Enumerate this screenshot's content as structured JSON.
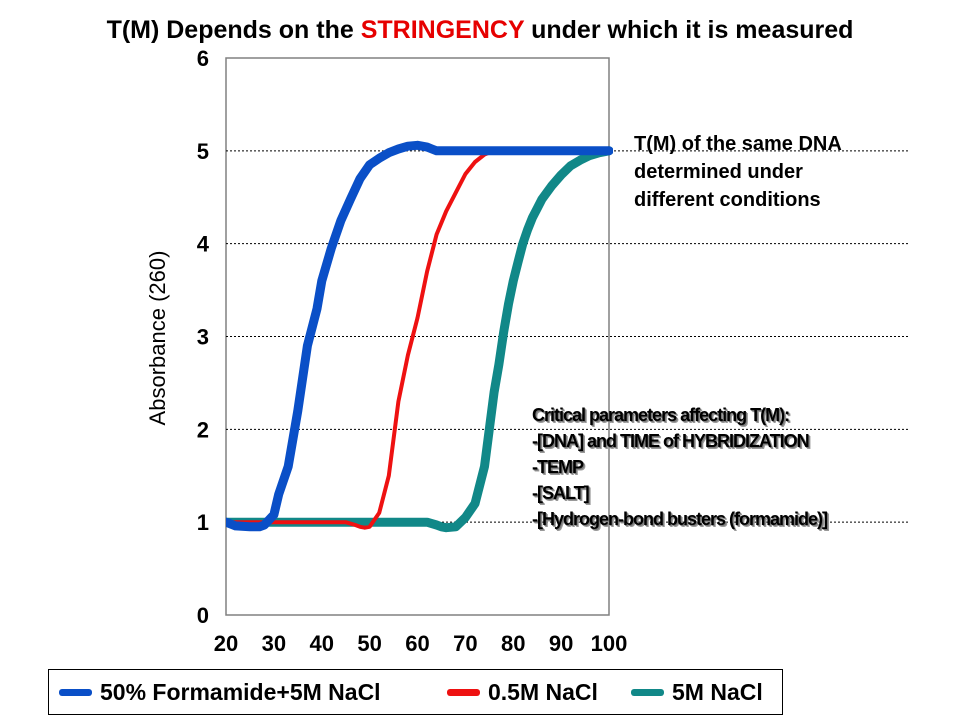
{
  "title": {
    "prefix": "T(M) Depends on the ",
    "highlight": "STRINGENCY",
    "suffix": " under which it is measured",
    "highlight_color": "#e60000"
  },
  "side_note": {
    "line1": "T(M) of the same DNA",
    "line2": "determined under",
    "line3": "different conditions"
  },
  "parameters_box": {
    "line1": "Critical parameters affecting T(M):",
    "line2": "-[DNA] and TIME of HYBRIDIZATION",
    "line3": "-TEMP",
    "line4": "-[SALT]",
    "line5": "-[Hydrogen-bond busters (formamide)]"
  },
  "chart_data": {
    "type": "line",
    "title": "",
    "xlabel": "",
    "ylabel": "Absorbance (260)",
    "xlim": [
      20,
      100
    ],
    "ylim": [
      0,
      6
    ],
    "x_ticks": [
      20,
      30,
      40,
      50,
      60,
      70,
      80,
      90,
      100
    ],
    "y_ticks": [
      0,
      1,
      2,
      3,
      4,
      5,
      6
    ],
    "grid": "horizontal dotted",
    "legend_position": "bottom",
    "series": [
      {
        "name": "50% Formamide+5M NaCl",
        "color": "#0a4fc7",
        "x": [
          20,
          22,
          25,
          27,
          28,
          30,
          31,
          33,
          35,
          37,
          39,
          40,
          42,
          44,
          46,
          48,
          50,
          52,
          54,
          56,
          58,
          60,
          62,
          63,
          64,
          65,
          66,
          67,
          70,
          75,
          80,
          85,
          90,
          95,
          100
        ],
        "y": [
          1.0,
          0.96,
          0.95,
          0.95,
          0.97,
          1.08,
          1.3,
          1.6,
          2.2,
          2.9,
          3.3,
          3.6,
          3.95,
          4.25,
          4.48,
          4.7,
          4.85,
          4.92,
          4.98,
          5.02,
          5.05,
          5.06,
          5.04,
          5.02,
          5.0,
          5.0,
          5.0,
          5.0,
          5.0,
          5.0,
          5.0,
          5.0,
          5.0,
          5.0,
          5.0
        ]
      },
      {
        "name": "0.5M NaCl",
        "color": "#ee1111",
        "x": [
          20,
          30,
          40,
          45,
          47,
          48,
          49,
          50,
          52,
          54,
          56,
          58,
          60,
          62,
          64,
          66,
          68,
          70,
          72,
          74,
          76,
          78,
          80,
          82,
          84,
          86,
          90,
          95,
          100
        ],
        "y": [
          1.0,
          1.0,
          1.0,
          1.0,
          0.97,
          0.95,
          0.94,
          0.95,
          1.1,
          1.5,
          2.3,
          2.8,
          3.2,
          3.7,
          4.1,
          4.35,
          4.55,
          4.75,
          4.88,
          4.96,
          5.0,
          5.01,
          5.02,
          5.02,
          5.01,
          5.0,
          5.0,
          5.0,
          5.0
        ]
      },
      {
        "name": "5M NaCl",
        "color": "#118888",
        "x": [
          20,
          30,
          40,
          50,
          62,
          64,
          65,
          66,
          68,
          70,
          72,
          74,
          75,
          76,
          77,
          78,
          79,
          80,
          81,
          82,
          83,
          84,
          85,
          86,
          88,
          90,
          92,
          94,
          96,
          98,
          100
        ],
        "y": [
          1.0,
          1.0,
          1.0,
          1.0,
          1.0,
          0.97,
          0.95,
          0.94,
          0.95,
          1.05,
          1.2,
          1.6,
          2.0,
          2.4,
          2.7,
          3.05,
          3.35,
          3.6,
          3.8,
          4.0,
          4.15,
          4.28,
          4.38,
          4.48,
          4.62,
          4.74,
          4.84,
          4.9,
          4.95,
          4.98,
          5.0
        ]
      }
    ]
  }
}
